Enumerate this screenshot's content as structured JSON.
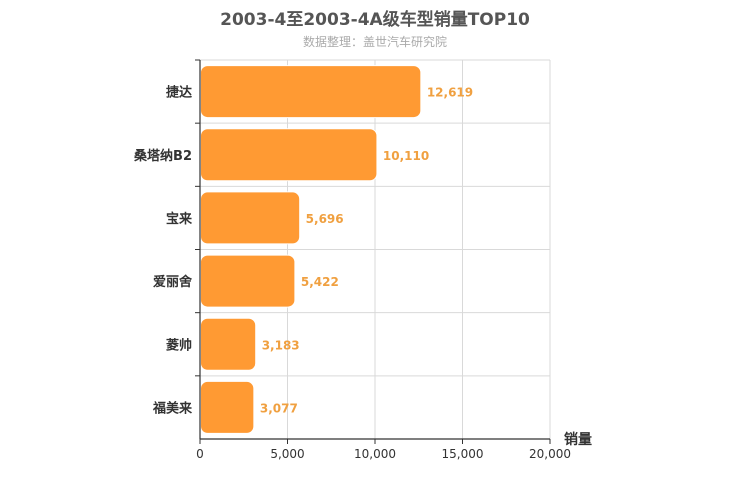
{
  "chart_data": {
    "type": "bar",
    "orientation": "horizontal",
    "title": "2003-4至2003-4A级车型销量TOP10",
    "subtitle": "数据整理：盖世汽车研究院",
    "xlabel": "销量",
    "ylabel": "",
    "categories": [
      "捷达",
      "桑塔纳B2",
      "宝来",
      "爱丽舍",
      "菱帅",
      "福美来"
    ],
    "values": [
      12619,
      10110,
      5696,
      5422,
      3183,
      3077
    ],
    "value_labels": [
      "12,619",
      "10,110",
      "5,696",
      "5,422",
      "3,183",
      "3,077"
    ],
    "xlim": [
      0,
      20000
    ],
    "x_ticks": [
      0,
      5000,
      10000,
      15000,
      20000
    ],
    "x_tick_labels": [
      "0",
      "5,000",
      "10,000",
      "15,000",
      "20,000"
    ],
    "grid": true,
    "legend": "none",
    "colors": {
      "bar": "#ff9a33",
      "bar_stroke": "#ffffff",
      "value_label": "#f0a040",
      "grid": "#d9d9d9",
      "axis": "#333333",
      "text": "#333333"
    }
  }
}
